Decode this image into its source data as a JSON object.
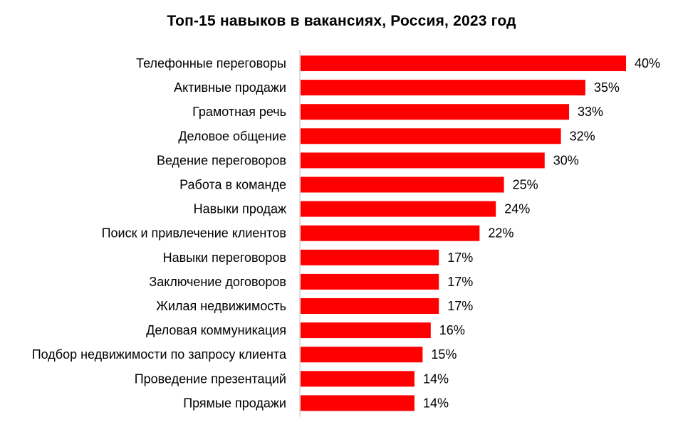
{
  "chart_data": {
    "type": "bar",
    "orientation": "horizontal",
    "title": "Топ-15 навыков в вакансиях,  Россия, 2023 год",
    "xlabel": "",
    "ylabel": "",
    "value_suffix": "%",
    "xlim": [
      0,
      40
    ],
    "grid": false,
    "legend": "none",
    "bar_color": "#ff0000",
    "axis_color": "#bfbfbf",
    "categories": [
      "Телефонные переговоры",
      "Активные продажи",
      "Грамотная речь",
      "Деловое общение",
      "Ведение переговоров",
      "Работа в команде",
      "Навыки продаж",
      "Поиск и привлечение клиентов",
      "Навыки переговоров",
      "Заключение договоров",
      "Жилая недвижимость",
      "Деловая коммуникация",
      "Подбор недвижимости по запросу клиента",
      "Проведение презентаций",
      "Прямые продажи"
    ],
    "values": [
      40,
      35,
      33,
      32,
      30,
      25,
      24,
      22,
      17,
      17,
      17,
      16,
      15,
      14,
      14
    ],
    "value_labels": [
      "40%",
      "35%",
      "33%",
      "32%",
      "30%",
      "25%",
      "24%",
      "22%",
      "17%",
      "17%",
      "17%",
      "16%",
      "15%",
      "14%",
      "14%"
    ]
  }
}
